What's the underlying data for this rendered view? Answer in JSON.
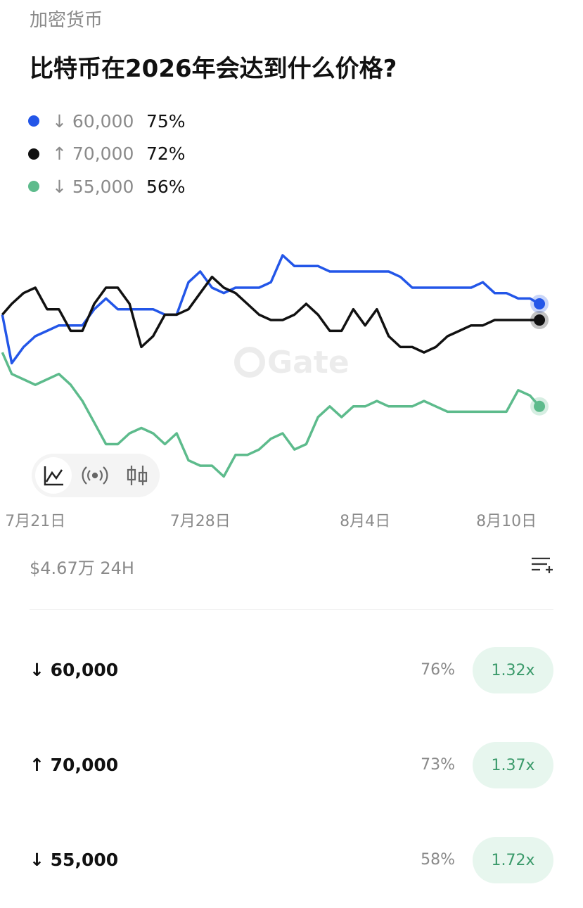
{
  "header": {
    "category": "加密货币",
    "title": "比特币在2026年会达到什么价格?"
  },
  "chart_data": {
    "type": "line",
    "watermark": "Gate",
    "x": [
      -1.4,
      -1,
      -0.5,
      0,
      0.5,
      1,
      1.5,
      2,
      2.5,
      3,
      3.5,
      4,
      4.5,
      5,
      5.5,
      6,
      6.5,
      7,
      7.5,
      8,
      8.5,
      9,
      9.5,
      10,
      10.5,
      11,
      11.5,
      12,
      12.5,
      13,
      13.5,
      14,
      14.5,
      15,
      15.5,
      16,
      16.5,
      17,
      17.5,
      18,
      18.5,
      19,
      19.5,
      20,
      20.5,
      21,
      21.4
    ],
    "xlim": [
      -1.5,
      23.25
    ],
    "xticks": [
      {
        "value": 0,
        "label": "7月21日"
      },
      {
        "value": 7,
        "label": "7月28日"
      },
      {
        "value": 14,
        "label": "8月4日"
      },
      {
        "value": 20,
        "label": "8月10日"
      }
    ],
    "ylim": [
      40,
      88
    ],
    "series": [
      {
        "name": "↓ 60,000",
        "color": "#2356e8",
        "latest": 75,
        "latest_label": "75%",
        "values": [
          73,
          64,
          67,
          69,
          70,
          71,
          71,
          71,
          74,
          76,
          74,
          74,
          74,
          74,
          73,
          73,
          79,
          81,
          78,
          77,
          78,
          78,
          78,
          79,
          84,
          82,
          82,
          82,
          81,
          81,
          81,
          81,
          81,
          81,
          80,
          78,
          78,
          78,
          78,
          78,
          78,
          79,
          77,
          77,
          76,
          76,
          75
        ]
      },
      {
        "name": "↑ 70,000",
        "color": "#111111",
        "latest": 72,
        "latest_label": "72%",
        "values": [
          73,
          75,
          77,
          78,
          74,
          74,
          70,
          70,
          75,
          78,
          78,
          75,
          67,
          69,
          73,
          73,
          74,
          77,
          80,
          78,
          77,
          75,
          73,
          72,
          72,
          73,
          75,
          73,
          70,
          70,
          74,
          71,
          74,
          69,
          67,
          67,
          66,
          67,
          69,
          70,
          71,
          71,
          72,
          72,
          72,
          72,
          72
        ]
      },
      {
        "name": "↓ 55,000",
        "color": "#5dbb8c",
        "latest": 56,
        "latest_label": "56%",
        "values": [
          66,
          62,
          61,
          60,
          61,
          62,
          60,
          57,
          53,
          49,
          49,
          51,
          52,
          51,
          49,
          51,
          46,
          45,
          45,
          43,
          47,
          47,
          48,
          50,
          51,
          48,
          49,
          54,
          56,
          54,
          56,
          56,
          57,
          56,
          56,
          56,
          57,
          56,
          55,
          55,
          55,
          55,
          55,
          55,
          59,
          58,
          56
        ]
      }
    ]
  },
  "volume": "$4.67万 24H",
  "outcomes": [
    {
      "name": "↓ 60,000",
      "probability": "76%",
      "payout": "1.32x"
    },
    {
      "name": "↑ 70,000",
      "probability": "73%",
      "payout": "1.37x"
    },
    {
      "name": "↓ 55,000",
      "probability": "58%",
      "payout": "1.72x"
    }
  ]
}
